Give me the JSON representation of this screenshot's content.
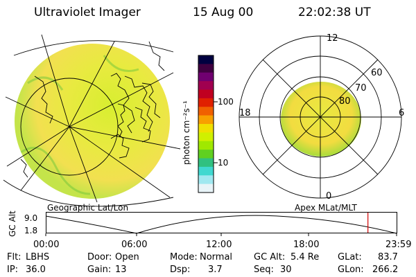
{
  "header": {
    "instrument": "Ultraviolet Imager",
    "date": "15 Aug 00",
    "time": "22:02:38 UT"
  },
  "colorbar": {
    "units": "photon cm⁻²s⁻¹",
    "tick_100": "100",
    "tick_10": "10",
    "colors": [
      "#000040",
      "#400040",
      "#700070",
      "#a00050",
      "#c00020",
      "#e02000",
      "#f06000",
      "#f8a000",
      "#f0e000",
      "#d0f000",
      "#a0e800",
      "#60d020",
      "#30c080",
      "#40d8d0",
      "#a0e8f0",
      "#e8f4f8"
    ]
  },
  "geo_panel": {
    "caption": "Geographic Lat/Lon"
  },
  "polar_panel": {
    "caption": "Apex MLat/MLT",
    "mlt_labels": {
      "top": "12",
      "left": "18",
      "right": "6",
      "bottom": "0"
    },
    "lat_labels": [
      "60",
      "70",
      "80"
    ]
  },
  "orbit": {
    "ylabel": "GC Alt",
    "yticks": [
      "9.0",
      "1.8"
    ],
    "xticks": [
      "00:00",
      "06:00",
      "12:00",
      "18:00",
      "23:59"
    ],
    "current_time_hours": 22.04,
    "marker_color": "#d00000"
  },
  "status": {
    "flt": {
      "label": "Flt:",
      "value": "LBHS"
    },
    "ip": {
      "label": "IP:",
      "value": "36.0"
    },
    "door": {
      "label": "Door:",
      "value": "Open"
    },
    "gain": {
      "label": "Gain:",
      "value": "13"
    },
    "mode": {
      "label": "Mode:",
      "value": "Normal"
    },
    "dsp": {
      "label": "Dsp:",
      "value": "3.7"
    },
    "gcalt": {
      "label": "GC Alt:",
      "value": "5.4 Re"
    },
    "seq": {
      "label": "Seq:",
      "value": "30"
    },
    "glat": {
      "label": "GLat:",
      "value": "83.7"
    },
    "glon": {
      "label": "GLon:",
      "value": "266.2"
    }
  }
}
